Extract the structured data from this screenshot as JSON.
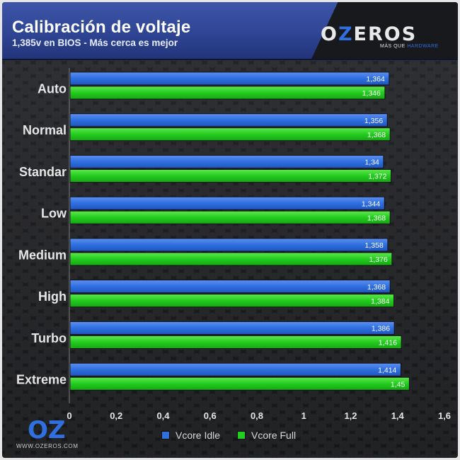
{
  "chart_data": {
    "type": "bar",
    "orientation": "horizontal",
    "title": "Calibración de voltaje",
    "subtitle": "1,385v en BIOS - Más cerca es mejor",
    "categories": [
      "Auto",
      "Normal",
      "Standar",
      "Low",
      "Medium",
      "High",
      "Turbo",
      "Extreme"
    ],
    "series": [
      {
        "name": "Vcore Idle",
        "color": "#2f6fe0",
        "values": [
          1.364,
          1.356,
          1.34,
          1.344,
          1.358,
          1.368,
          1.386,
          1.414
        ],
        "labels": [
          "1,364",
          "1,356",
          "1,34",
          "1,344",
          "1,358",
          "1,368",
          "1,386",
          "1,414"
        ]
      },
      {
        "name": "Vcore Full",
        "color": "#23cc1e",
        "values": [
          1.346,
          1.368,
          1.372,
          1.368,
          1.376,
          1.384,
          1.416,
          1.45
        ],
        "labels": [
          "1,346",
          "1,368",
          "1,372",
          "1,368",
          "1,376",
          "1,384",
          "1,416",
          "1,45"
        ]
      }
    ],
    "xlim": [
      0,
      1.6
    ],
    "x_ticks": [
      0,
      0.2,
      0.4,
      0.6,
      0.8,
      1,
      1.2,
      1.4,
      1.6
    ],
    "x_tick_labels": [
      "0",
      "0,2",
      "0,4",
      "0,6",
      "0,8",
      "1",
      "1,2",
      "1,4",
      "1,6"
    ],
    "legend_position": "bottom",
    "grid": false
  },
  "branding": {
    "logo_text_prefix": "O",
    "logo_text_z": "Z",
    "logo_text_suffix": "EROS",
    "tagline_prefix": "MÁS QUE ",
    "tagline_highlight": "HARDWARE",
    "corner_logo_mark": "OZ",
    "corner_url": "WWW.OZEROS.COM"
  }
}
